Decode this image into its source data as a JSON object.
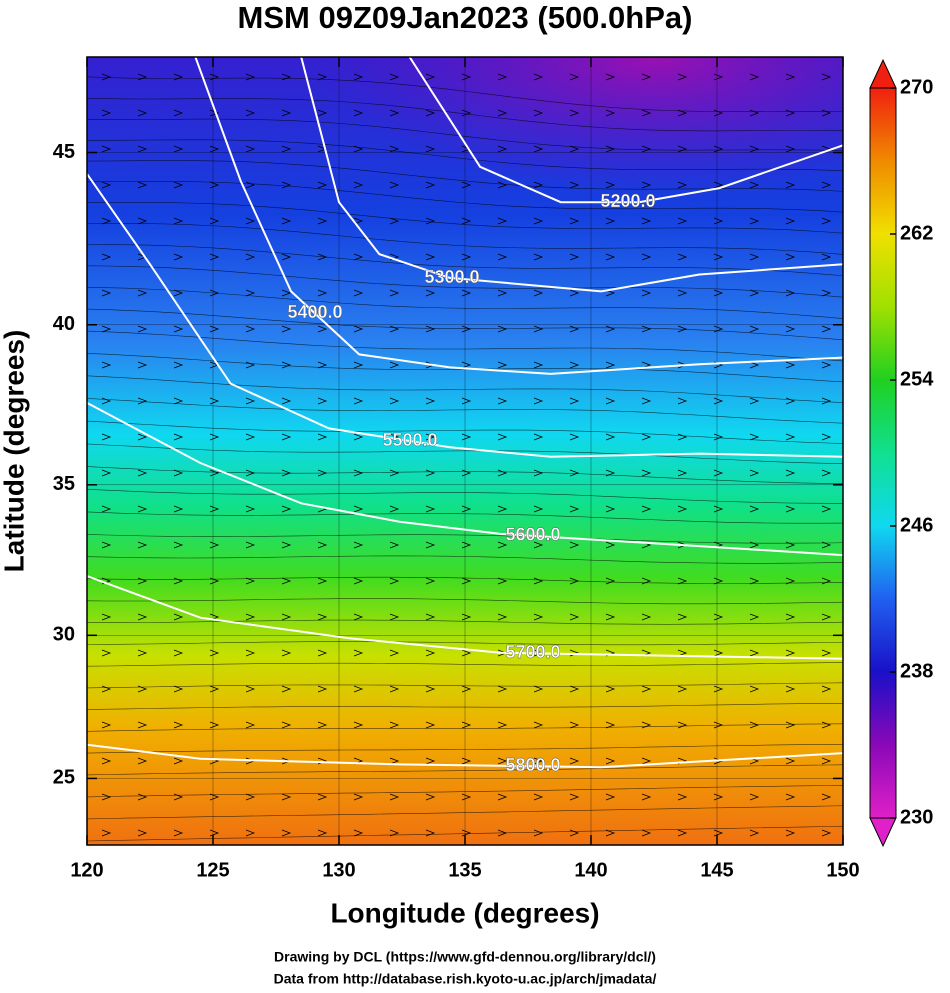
{
  "chart_data": {
    "type": "contour-map",
    "title": "MSM 09Z09Jan2023 (500.0hPa)",
    "x_label": "Longitude (degrees)",
    "y_label": "Latitude  (degrees)",
    "footer": [
      "Drawing by DCL (https://www.gfd-dennou.org/library/dcl/)",
      "Data from http://database.rish.kyoto-u.ac.jp/arch/jmadata/"
    ],
    "xlim": [
      120,
      150
    ],
    "xticks": [
      120,
      125,
      130,
      135,
      140,
      145,
      150
    ],
    "ylim": [
      22.6,
      47.6
    ],
    "yticks": [
      25,
      30,
      35,
      40,
      45
    ],
    "projection": "mercator",
    "contours": [
      {
        "level": 5200,
        "label": "5200.0",
        "lon": [
          132.8,
          135.6,
          138.8,
          141.9,
          145.1,
          150
        ],
        "lat": [
          47.6,
          44.6,
          43.6,
          43.6,
          44.0,
          45.2
        ]
      },
      {
        "level": 5300,
        "label": "5300.0",
        "lon": [
          128.5,
          130.0,
          131.6,
          134.4,
          140.4,
          144.3,
          150
        ],
        "lat": [
          47.6,
          43.6,
          42.1,
          41.4,
          41.0,
          41.5,
          41.8
        ]
      },
      {
        "level": 5400,
        "label": "5400.0",
        "lon": [
          124.3,
          126.1,
          128.1,
          130.8,
          134.4,
          138.4,
          144.3,
          150
        ],
        "lat": [
          47.6,
          44.2,
          41.0,
          39.1,
          38.7,
          38.5,
          38.8,
          39.0
        ]
      },
      {
        "level": 5500,
        "label": "5500.0",
        "lon": [
          120,
          122.5,
          125.7,
          129.6,
          134.4,
          138.4,
          144.3,
          150
        ],
        "lat": [
          44.4,
          41.8,
          38.2,
          36.8,
          36.2,
          35.9,
          36.0,
          35.9
        ]
      },
      {
        "level": 5600,
        "label": "5600.0",
        "lon": [
          120,
          124.5,
          128.5,
          132.4,
          136.4,
          142.3,
          150
        ],
        "lat": [
          37.6,
          35.7,
          34.4,
          33.8,
          33.4,
          33.1,
          32.7
        ]
      },
      {
        "level": 5700,
        "label": "5700.0",
        "lon": [
          120,
          124.5,
          130.4,
          136.4,
          150
        ],
        "lat": [
          32.0,
          30.6,
          29.9,
          29.4,
          29.2
        ]
      },
      {
        "level": 5800,
        "label": "5800.0",
        "lon": [
          120,
          124.5,
          132.4,
          140.4,
          150
        ],
        "lat": [
          26.2,
          25.7,
          25.5,
          25.4,
          25.9
        ]
      }
    ],
    "colorbar": {
      "lim": [
        230,
        270
      ],
      "ticks": [
        230,
        238,
        246,
        254,
        262,
        270
      ],
      "colors": [
        "#e020c8",
        "#8a08b8",
        "#1a10c8",
        "#2060f0",
        "#10d8f0",
        "#10e090",
        "#20d020",
        "#a0e000",
        "#f0e000",
        "#f08a00",
        "#f02010"
      ]
    }
  }
}
